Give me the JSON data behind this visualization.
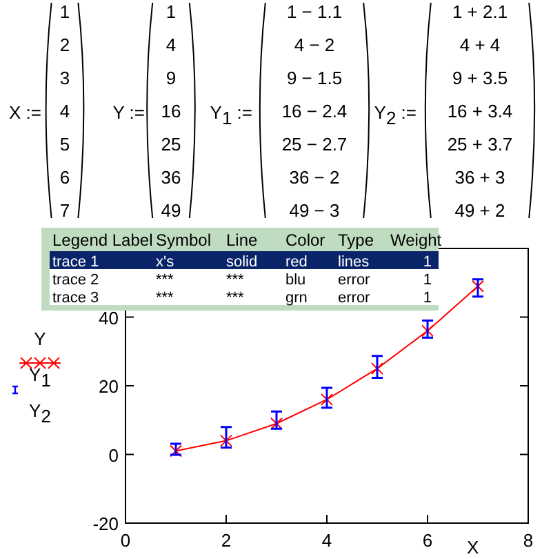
{
  "chart_data": {
    "type": "line",
    "xlabel": "X",
    "x": [
      1,
      2,
      3,
      4,
      5,
      6,
      7
    ],
    "xlim": [
      0,
      8
    ],
    "xticks": [
      0,
      2,
      4,
      6,
      8
    ],
    "ylim": [
      -20,
      60
    ],
    "yticks": [
      -20,
      0,
      20,
      40
    ],
    "legend": "left",
    "line_style": "solid",
    "marker": "cross",
    "series": [
      {
        "name": "Y",
        "color": "#ff0000",
        "values": [
          1,
          4,
          9,
          16,
          25,
          36,
          49
        ],
        "errors": [
          [
            -0.1,
            3.1
          ],
          [
            2,
            8
          ],
          [
            7.5,
            12.5
          ],
          [
            13.6,
            19.4
          ],
          [
            22.3,
            28.7
          ],
          [
            34,
            39
          ],
          [
            46,
            51
          ]
        ]
      }
    ],
    "annotations": [
      "X :=\n1\n2\n3\n4\n5\n6\n7",
      "Y :=\n1\n4\n9\n16\n25\n36\n49",
      "Y$_{1}$ :=\n1 − 1.1\n4 − 2\n9 − 1.5\n16 − 2.4\n25 − 2.7\n36 − 2\n49 − 3",
      "Y$_{2}$ :=\n1 + 2.1\n4 + 4\n9 + 3.5\n16 + 3.4\n25 + 3.7\n36 + 3\n49 + 2",
      "Legend Label\tSymbol\tLine\tColor\tType\tWeight",
      "trace 1\tx's\tsolid\tred\tlines\t1",
      "trace 2\t***\t***\tblu\terror\t1",
      "trace 3\t***\t***\tgrn\terror\t1",
      "Y$_{1}$",
      "Y$_{2}$"
    ]
  }
}
